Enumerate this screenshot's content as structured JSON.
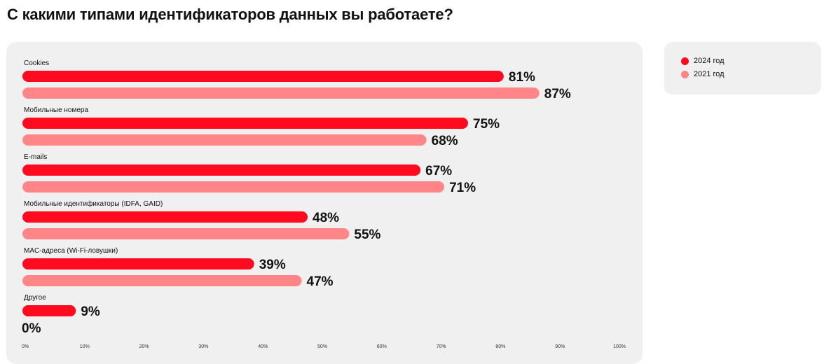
{
  "title": "С какими типами идентификаторов данных вы работаете?",
  "colors": {
    "series_2024": "#ff0a1e",
    "series_2021": "#ff8589",
    "panel_bg": "#f0f0f0",
    "text": "#111111"
  },
  "legend": {
    "items": [
      {
        "label": "2024 год",
        "color": "#ff0a1e"
      },
      {
        "label": "2021 год",
        "color": "#ff8589"
      }
    ]
  },
  "chart_data": {
    "type": "bar",
    "orientation": "horizontal",
    "categories": [
      "Cookies",
      "Мобильные номера",
      "E-mails",
      "Мобильные идентификаторы (IDFA, GAID)",
      "MAC-адреса (Wi-Fi-ловушки)",
      "Другое"
    ],
    "series": [
      {
        "name": "2024 год",
        "values": [
          81,
          75,
          67,
          48,
          39,
          9
        ]
      },
      {
        "name": "2021 год",
        "values": [
          87,
          68,
          71,
          55,
          47,
          0
        ]
      }
    ],
    "xlim": [
      0,
      100
    ],
    "x_ticks": [
      "0%",
      "10%",
      "20%",
      "30%",
      "40%",
      "50%",
      "60%",
      "70%",
      "80%",
      "90%",
      "100%"
    ],
    "value_suffix": "%",
    "legend_position": "top-right",
    "grid": false
  }
}
